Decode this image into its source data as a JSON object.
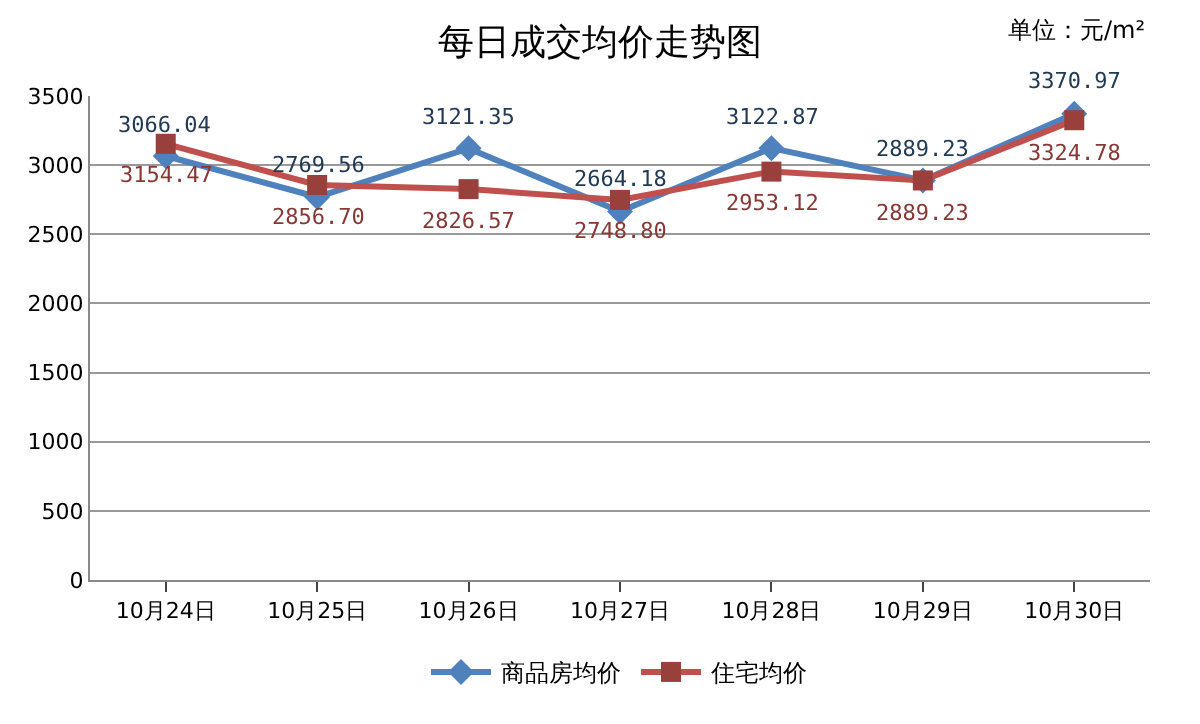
{
  "chart_data": {
    "type": "line",
    "title": "每日成交均价走势图",
    "annotations": [
      "单位：元/m²"
    ],
    "categories": [
      "10月24日",
      "10月25日",
      "10月26日",
      "10月27日",
      "10月28日",
      "10月29日",
      "10月30日"
    ],
    "series": [
      {
        "name": "商品房均价",
        "color": "#4f81bd",
        "marker": "diamond",
        "values": [
          3066.04,
          2769.56,
          3121.35,
          2664.18,
          3122.87,
          2889.23,
          3370.97
        ],
        "value_labels": [
          "3066.04",
          "2769.56",
          "3121.35",
          "2664.18",
          "3122.87",
          "2889.23",
          "3370.97"
        ]
      },
      {
        "name": "住宅均价",
        "color": "#c0504d",
        "marker": "square",
        "values": [
          3154.47,
          2856.7,
          2826.57,
          2748.8,
          2953.12,
          2889.23,
          3324.78
        ],
        "value_labels": [
          "3154.47",
          "2856.70",
          "2826.57",
          "2748.80",
          "2953.12",
          "2889.23",
          "3324.78"
        ]
      }
    ],
    "ylim": [
      0,
      3500
    ],
    "yticks": [
      0,
      500,
      1000,
      1500,
      2000,
      2500,
      3000,
      3500
    ],
    "grid": "y",
    "legend": "bottom"
  }
}
